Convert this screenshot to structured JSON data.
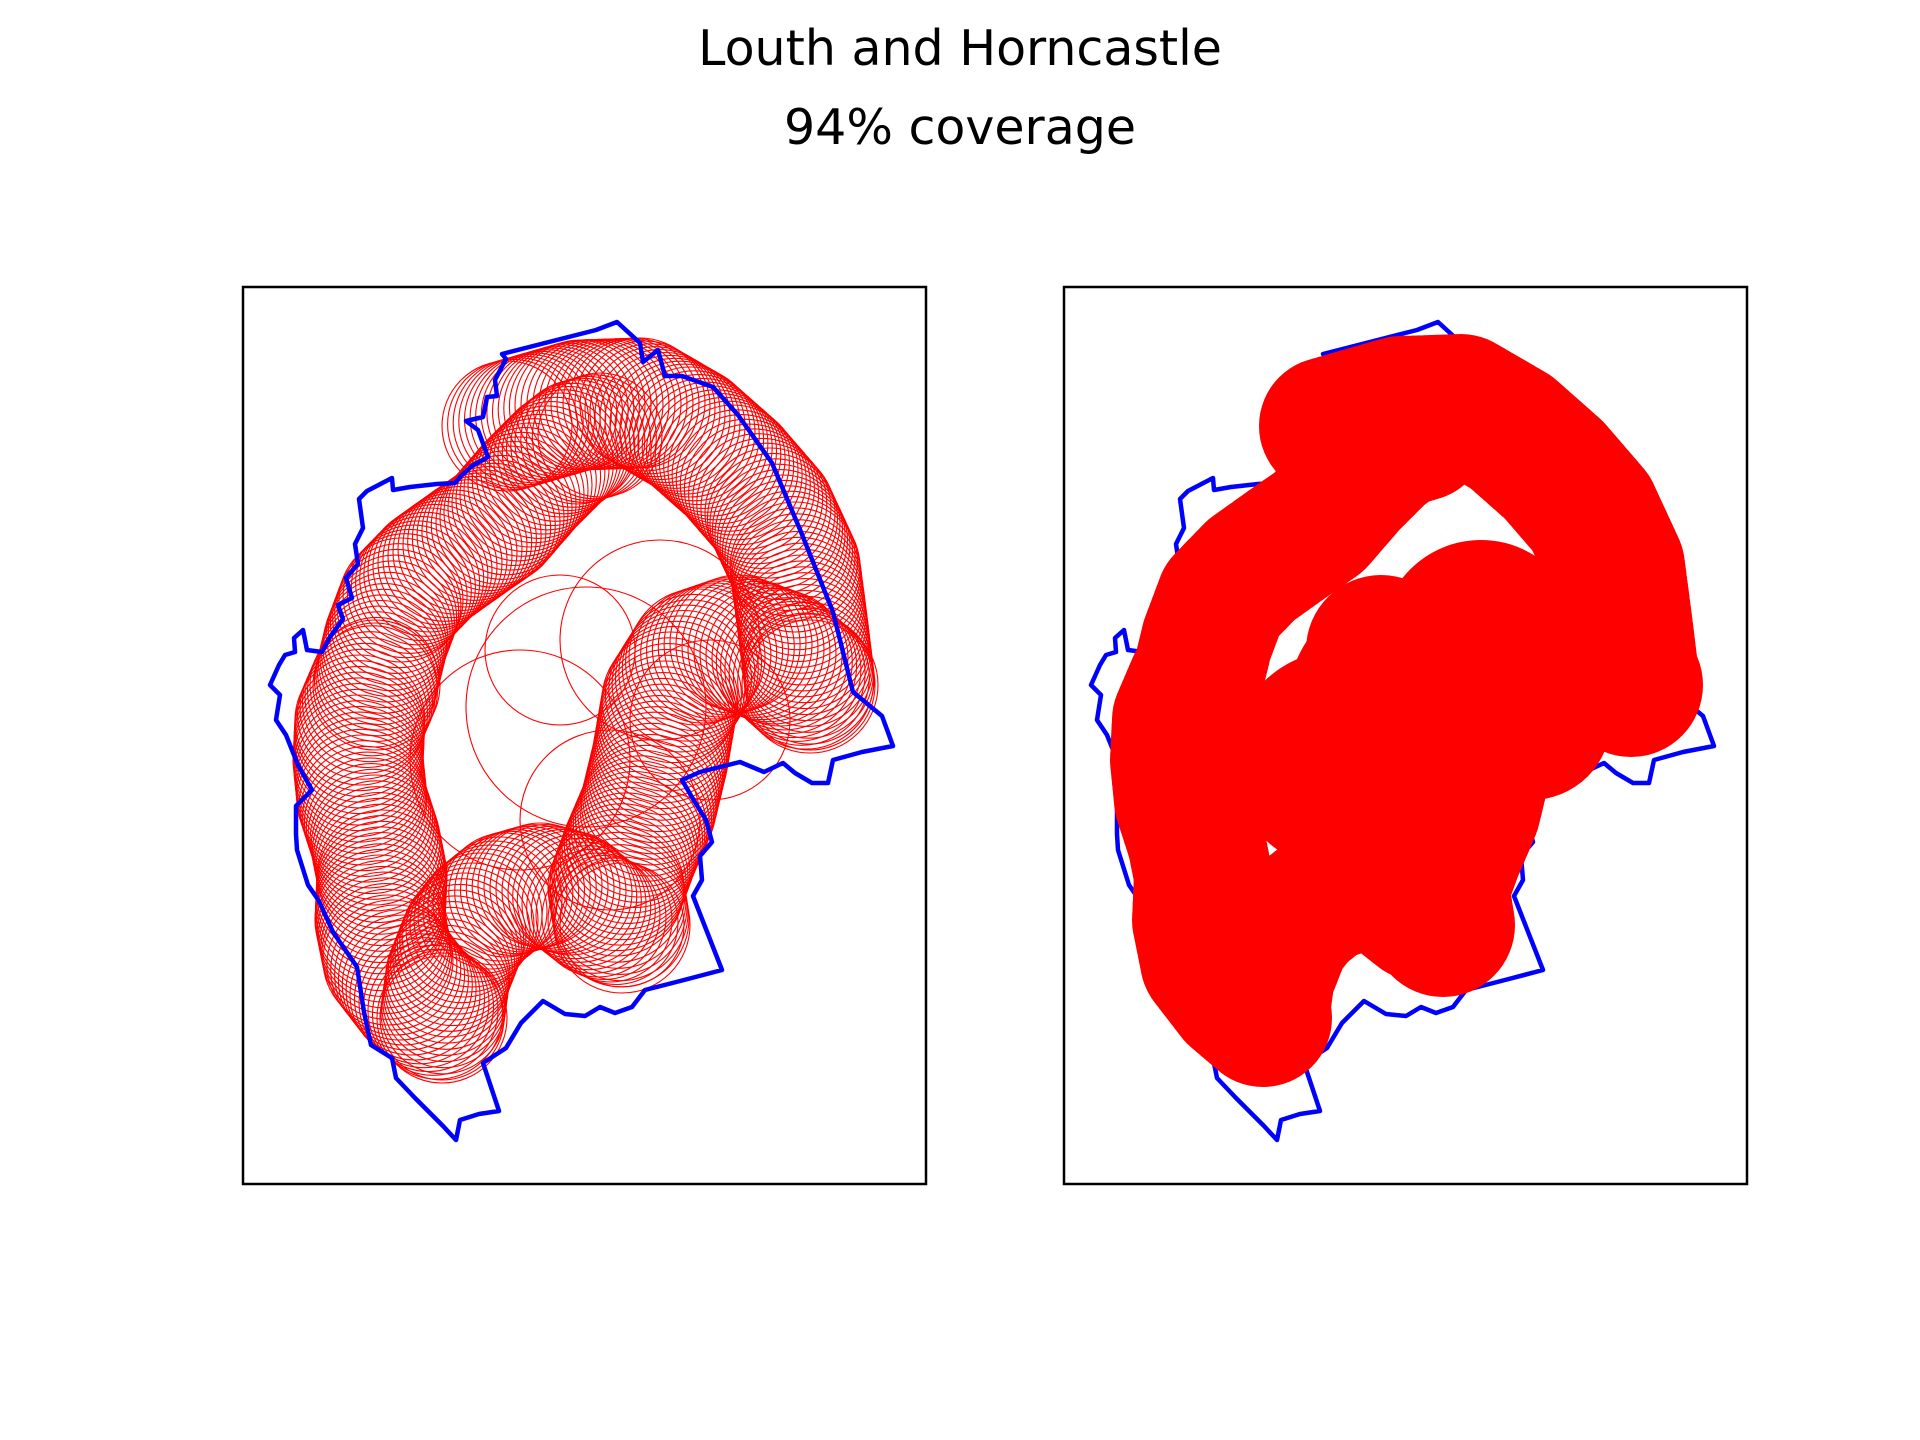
{
  "figure": {
    "title": "Louth and Horncastle",
    "subtitle": "94% coverage"
  },
  "colors": {
    "boundary": "#0000ff",
    "circles": "#ff0000",
    "frame": "#000000",
    "background": "#ffffff"
  },
  "panels": [
    {
      "id": "left",
      "style": "circle-outlines"
    },
    {
      "id": "right",
      "style": "filled-union"
    }
  ]
}
